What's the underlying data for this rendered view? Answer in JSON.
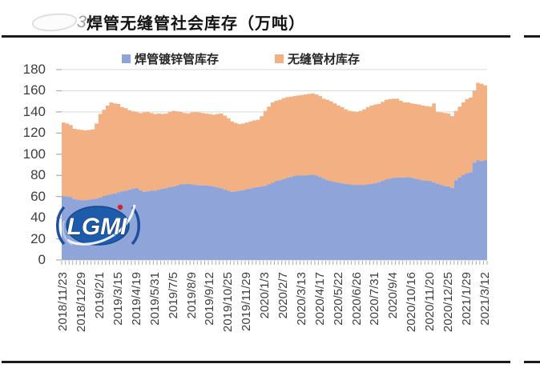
{
  "page": {
    "title": "焊管无缝管社会库存（万吨）",
    "corner_mark": "3",
    "watermark": "LGMI"
  },
  "colors": {
    "welded_blue": "#8FA5D9",
    "seamless_orange": "#F2B083",
    "gridline": "#d9d9d9",
    "tick": "#ababab",
    "rule": "#1b1b1b",
    "logo_blue": "#1d5cab",
    "logo_red": "#d42127"
  },
  "chart_data": {
    "type": "area",
    "stacked": true,
    "step": true,
    "title": "焊管无缝管社会库存（万吨）",
    "ylabel": "",
    "xlabel": "",
    "ylim": [
      0,
      180
    ],
    "ytick_interval": 20,
    "y_tick_labels": [
      "0",
      "20",
      "40",
      "60",
      "80",
      "100",
      "120",
      "140",
      "160",
      "180"
    ],
    "grid": "horizontal",
    "legend_position": "top",
    "x_tick_labels": [
      "2018/11/23",
      "2018/12/29",
      "2019/2/1",
      "2019/3/15",
      "2019/4/19",
      "2019/5/31",
      "2019/7/5",
      "2019/8/9",
      "2019/9/12",
      "2019/10/25",
      "2019/11/29",
      "2020/1/3",
      "2020/2/7",
      "2020/3/13",
      "2020/4/17",
      "2020/5/22",
      "2020/6/26",
      "2020/7/31",
      "2020/9/4",
      "2020/10/16",
      "2020/11/20",
      "2020/12/25",
      "2021/1/29",
      "2021/3/12"
    ],
    "x_label_every_n_points": 5,
    "series": [
      {
        "name": "焊管镀锌管库存",
        "color": "#8FA5D9",
        "values": [
          60.5,
          60,
          59.5,
          57.5,
          57,
          56.5,
          56.5,
          57,
          57.5,
          58,
          59,
          60.5,
          61.5,
          62,
          63,
          64,
          65,
          65.5,
          66.5,
          67.5,
          68,
          66,
          64.5,
          65,
          65.5,
          65.5,
          66.5,
          67.5,
          68,
          69,
          69.5,
          70.5,
          71.5,
          71.5,
          72,
          71.5,
          71,
          70.5,
          70.5,
          70.5,
          70,
          69.5,
          68.5,
          68,
          66.5,
          65.5,
          64.5,
          65,
          65.5,
          66,
          67,
          67.5,
          68.5,
          69,
          69.5,
          70,
          71.5,
          73,
          74.5,
          75.5,
          76.5,
          77.5,
          78.5,
          79.5,
          80,
          80,
          80,
          80.5,
          80.5,
          80,
          78.5,
          77,
          75.5,
          74.5,
          74,
          73,
          72.5,
          72,
          71.5,
          71,
          71,
          71,
          71,
          71.5,
          72,
          72.5,
          73.5,
          75,
          76,
          77,
          77.5,
          78,
          78,
          78,
          78.5,
          77.5,
          77,
          76,
          75.5,
          75,
          74.5,
          73.5,
          72,
          71,
          70,
          69.5,
          68,
          75.5,
          78,
          80.5,
          82,
          83,
          92,
          94.5,
          93.5,
          94.5
        ]
      },
      {
        "name": "无缝管材库存",
        "color": "#F2B083",
        "values": [
          69.5,
          69,
          68,
          66.5,
          66.5,
          66.5,
          66,
          66,
          66,
          71,
          79,
          81.5,
          84.5,
          87,
          85,
          83.5,
          79.5,
          78,
          75,
          73,
          72,
          73,
          75,
          75,
          73.5,
          72.5,
          72,
          70.5,
          70.5,
          71,
          71.5,
          70,
          68.5,
          67.5,
          66.5,
          68,
          69,
          69,
          68.5,
          68,
          68,
          68,
          69.5,
          70.5,
          70,
          68.5,
          66.5,
          64.5,
          63,
          63,
          63,
          63.5,
          63.5,
          63.5,
          66.5,
          71,
          73.5,
          76,
          76,
          76,
          76.5,
          76.5,
          76,
          75.5,
          75.5,
          76,
          76.5,
          76.5,
          77,
          76.5,
          76.5,
          75.5,
          76,
          75.5,
          74,
          73,
          72,
          70.5,
          69.5,
          69.5,
          69,
          70,
          71.5,
          73,
          74,
          74.5,
          74,
          74.5,
          75.5,
          75,
          75,
          74.5,
          72.5,
          71,
          70.5,
          70.5,
          70.5,
          71,
          70.5,
          70.5,
          70.5,
          74.5,
          68,
          68.5,
          69,
          69,
          68,
          65.5,
          67,
          68.5,
          70,
          70.5,
          68,
          73,
          73,
          70.5
        ]
      }
    ]
  },
  "legend": [
    {
      "label": "焊管镀锌管库存",
      "color": "#8FA5D9"
    },
    {
      "label": "无缝管材库存",
      "color": "#F2B083"
    }
  ]
}
